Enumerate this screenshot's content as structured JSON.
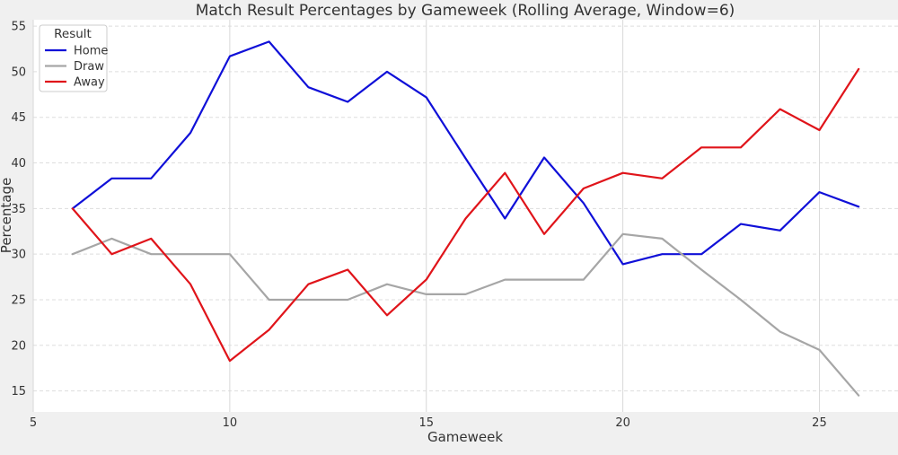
{
  "chart_data": {
    "type": "line",
    "title": "Match Result Percentages by Gameweek (Rolling Average, Window=6)",
    "xlabel": "Gameweek",
    "ylabel": "Percentage",
    "xlim": [
      5,
      27
    ],
    "ylim": [
      12.7,
      55.7
    ],
    "xticks": [
      5,
      10,
      15,
      20,
      25
    ],
    "yticks": [
      15,
      20,
      25,
      30,
      35,
      40,
      45,
      50,
      55
    ],
    "grid": true,
    "legend": {
      "title": "Result",
      "placement": "top-left"
    },
    "x": [
      6,
      7,
      8,
      9,
      10,
      11,
      12,
      13,
      14,
      15,
      16,
      17,
      18,
      19,
      20,
      21,
      22,
      23,
      24,
      25,
      26
    ],
    "series": [
      {
        "name": "Home",
        "color": "#1010d8",
        "values": [
          35.0,
          38.3,
          38.3,
          43.3,
          51.7,
          53.3,
          48.3,
          46.7,
          50.0,
          47.2,
          40.5,
          33.9,
          40.6,
          35.6,
          28.9,
          30.0,
          30.0,
          33.3,
          32.6,
          36.8,
          35.2
        ]
      },
      {
        "name": "Draw",
        "color": "#a6a6a6",
        "values": [
          30.0,
          31.7,
          30.0,
          30.0,
          30.0,
          25.0,
          25.0,
          25.0,
          26.7,
          25.6,
          25.6,
          27.2,
          27.2,
          27.2,
          32.2,
          31.7,
          28.3,
          25.0,
          21.5,
          19.5,
          14.5
        ]
      },
      {
        "name": "Away",
        "color": "#e0141a",
        "values": [
          35.0,
          30.0,
          31.7,
          26.7,
          18.3,
          21.7,
          26.7,
          28.3,
          23.3,
          27.2,
          33.9,
          38.9,
          32.2,
          37.2,
          38.9,
          38.3,
          41.7,
          41.7,
          45.9,
          43.6,
          50.3
        ]
      }
    ]
  }
}
